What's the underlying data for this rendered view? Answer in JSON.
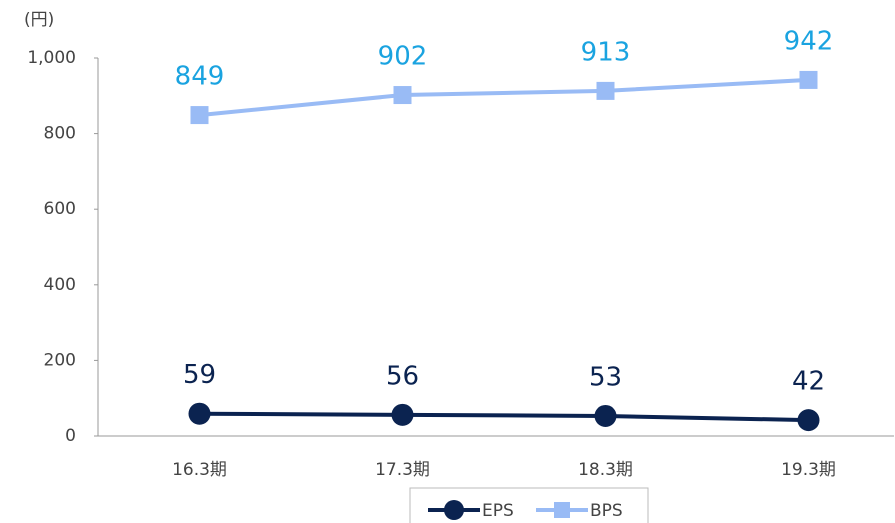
{
  "chart_data": {
    "type": "line",
    "y_label": "(円)",
    "categories": [
      "16.3期",
      "17.3期",
      "18.3期",
      "19.3期"
    ],
    "series": [
      {
        "name": "EPS",
        "color": "#0b2350",
        "label_color": "#0b2350",
        "marker": "circle",
        "values": [
          59,
          56,
          53,
          42
        ]
      },
      {
        "name": "BPS",
        "color": "#99bbf5",
        "label_color": "#1aa3e0",
        "marker": "square",
        "values": [
          849,
          902,
          913,
          942
        ]
      }
    ],
    "ylim": [
      0,
      1000
    ],
    "yticks": [
      0,
      200,
      400,
      600,
      800,
      {
        "value": 1000,
        "label": "1,000"
      }
    ],
    "grid": false,
    "legend": "bottom"
  }
}
